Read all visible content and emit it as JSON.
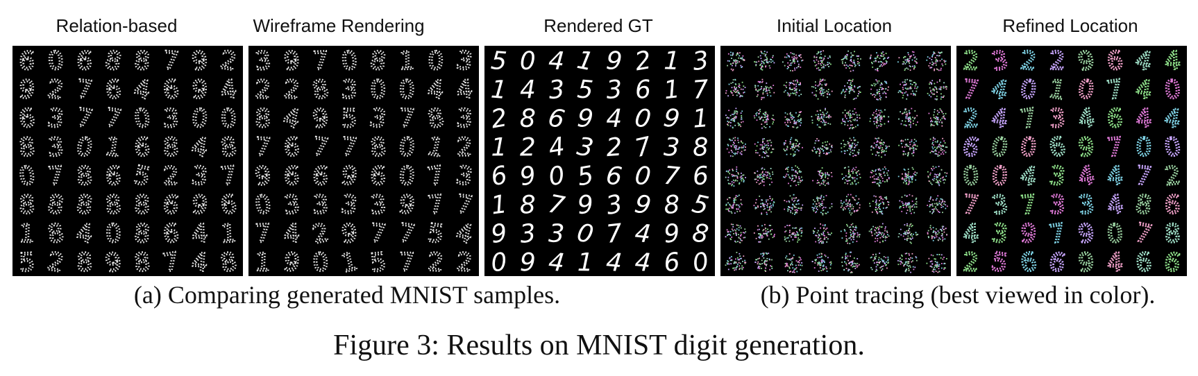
{
  "panels": [
    {
      "title": "Relation-based",
      "style": "dotted-white",
      "digits": [
        "6",
        "0",
        "6",
        "8",
        "8",
        "7",
        "9",
        "2",
        "9",
        "2",
        "7",
        "6",
        "4",
        "6",
        "9",
        "4",
        "6",
        "3",
        "7",
        "7",
        "0",
        "3",
        "0",
        "0",
        "8",
        "3",
        "0",
        "1",
        "6",
        "8",
        "4",
        "8",
        "0",
        "7",
        "8",
        "6",
        "5",
        "2",
        "3",
        "7",
        "8",
        "8",
        "8",
        "8",
        "8",
        "6",
        "9",
        "6",
        "1",
        "8",
        "4",
        "0",
        "8",
        "6",
        "4",
        "1",
        "5",
        "2",
        "8",
        "9",
        "8",
        "7",
        "4",
        "8"
      ]
    },
    {
      "title": "Wireframe Rendering",
      "style": "dotted-white",
      "digits": [
        "3",
        "9",
        "7",
        "0",
        "8",
        "1",
        "0",
        "3",
        "2",
        "2",
        "8",
        "3",
        "0",
        "0",
        "4",
        "4",
        "8",
        "4",
        "9",
        "5",
        "3",
        "7",
        "8",
        "3",
        "7",
        "6",
        "7",
        "7",
        "8",
        "0",
        "1",
        "2",
        "9",
        "6",
        "6",
        "9",
        "6",
        "0",
        "7",
        "3",
        "0",
        "3",
        "3",
        "3",
        "3",
        "9",
        "7",
        "7",
        "7",
        "4",
        "2",
        "9",
        "7",
        "7",
        "5",
        "4",
        "1",
        "9",
        "0",
        "1",
        "5",
        "7",
        "2",
        "2"
      ]
    },
    {
      "title": "Rendered GT",
      "style": "solid-white",
      "digits": [
        "5",
        "0",
        "4",
        "1",
        "9",
        "2",
        "1",
        "3",
        "1",
        "4",
        "3",
        "5",
        "3",
        "6",
        "1",
        "7",
        "2",
        "8",
        "6",
        "9",
        "4",
        "0",
        "9",
        "1",
        "1",
        "2",
        "4",
        "3",
        "2",
        "7",
        "3",
        "8",
        "6",
        "9",
        "0",
        "5",
        "6",
        "0",
        "7",
        "6",
        "1",
        "8",
        "7",
        "9",
        "3",
        "9",
        "8",
        "5",
        "9",
        "3",
        "3",
        "0",
        "7",
        "4",
        "9",
        "8",
        "0",
        "9",
        "4",
        "1",
        "4",
        "4",
        "6",
        "0"
      ]
    },
    {
      "title": "Initial Location",
      "style": "color-blob",
      "digits": [
        "",
        "",
        "",
        "",
        "",
        "",
        "",
        "",
        "",
        "",
        "",
        "",
        "",
        "",
        "",
        "",
        "",
        "",
        "",
        "",
        "",
        "",
        "",
        "",
        "",
        "",
        "",
        "",
        "",
        "",
        "",
        "",
        "",
        "",
        "",
        "",
        "",
        "",
        "",
        "",
        "",
        "",
        "",
        "",
        "",
        "",
        "",
        "",
        "",
        "",
        "",
        "",
        "",
        "",
        "",
        "",
        "",
        "",
        "",
        "",
        "",
        "",
        "",
        ""
      ]
    },
    {
      "title": "Refined Location",
      "style": "color-dotted",
      "digits": [
        "2",
        "3",
        "2",
        "2",
        "9",
        "6",
        "4",
        "4",
        "7",
        "4",
        "0",
        "1",
        "0",
        "7",
        "4",
        "0",
        "2",
        "4",
        "7",
        "3",
        "4",
        "6",
        "4",
        "4",
        "6",
        "0",
        "0",
        "6",
        "9",
        "7",
        "0",
        "0",
        "0",
        "0",
        "4",
        "3",
        "4",
        "4",
        "7",
        "2",
        "7",
        "3",
        "7",
        "3",
        "3",
        "4",
        "8",
        "6",
        "4",
        "3",
        "9",
        "7",
        "9",
        "0",
        "7",
        "8",
        "2",
        "5",
        "6",
        "6",
        "9",
        "4",
        "6",
        "6"
      ]
    }
  ],
  "captions": {
    "a": "(a) Comparing generated MNIST samples.",
    "b": "(b) Point tracing (best viewed in color)."
  },
  "figure_caption": "Figure 3: Results on MNIST digit generation."
}
